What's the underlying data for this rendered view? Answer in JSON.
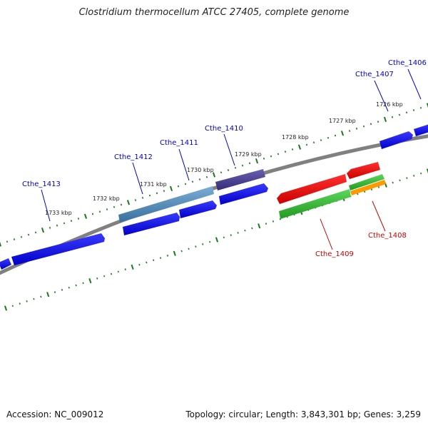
{
  "title": "Clostridium thermocellum ATCC 27405, complete genome",
  "footer": {
    "accession": "Accession: NC_009012",
    "info": "Topology: circular; Length: 3,843,301 bp; Genes: 3,259"
  },
  "colors": {
    "backbone": "#808080",
    "forward_gene": "#0000ff",
    "reverse_red": "#ff0000",
    "reverse_green": "#33bb33",
    "reverse_orange": "#ff9900",
    "steel_blue": "#4a86b8",
    "slate": "#4a3f8f",
    "label_blue": "#0000cc",
    "label_red": "#cc0000",
    "tick_green": "#1a7a1a"
  },
  "kbp_ticks": [
    {
      "label": "1726 kbp"
    },
    {
      "label": "1727 kbp"
    },
    {
      "label": "1728 kbp"
    },
    {
      "label": "1729 kbp"
    },
    {
      "label": "1730 kbp"
    },
    {
      "label": "1731 kbp"
    },
    {
      "label": "1732 kbp"
    },
    {
      "label": "1733 kbp"
    }
  ],
  "genes": [
    {
      "id": "Cthe_1406",
      "strand": "forward",
      "color": "#0000ff"
    },
    {
      "id": "Cthe_1407",
      "strand": "forward",
      "color": "#0000ff"
    },
    {
      "id": "Cthe_1410",
      "strand": "forward",
      "color": "#0000ff"
    },
    {
      "id": "Cthe_1411",
      "strand": "forward",
      "color": "#0000ff"
    },
    {
      "id": "Cthe_1412",
      "strand": "forward",
      "color": "#0000ff"
    },
    {
      "id": "Cthe_1413",
      "strand": "forward",
      "color": "#0000ff"
    },
    {
      "id": "Cthe_1409",
      "strand": "reverse",
      "color": "#ff0000"
    },
    {
      "id": "Cthe_1408",
      "strand": "reverse",
      "color": "#ff0000"
    }
  ]
}
